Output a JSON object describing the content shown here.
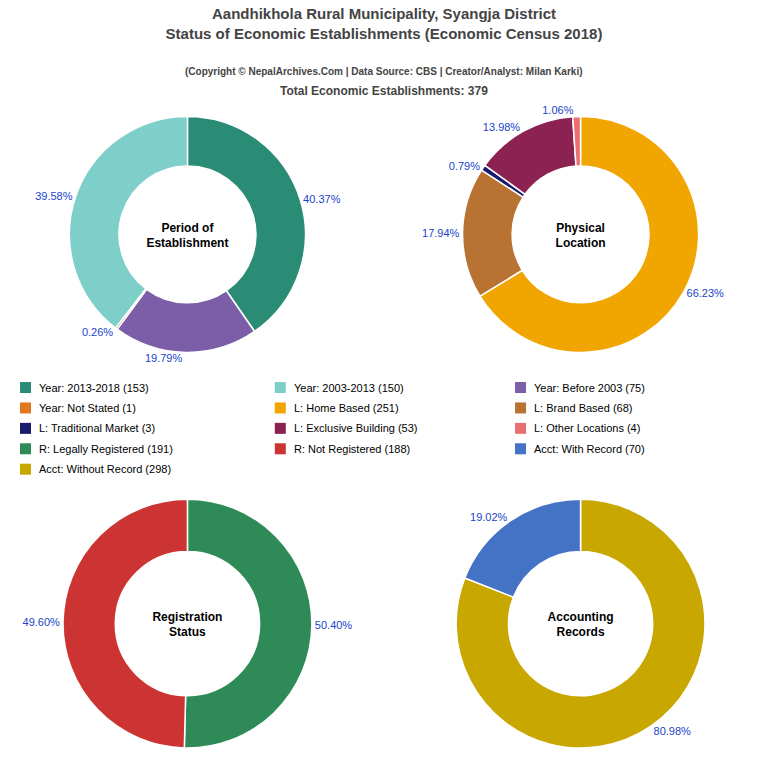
{
  "title": "Aandhikhola Rural Municipality, Syangja District\nStatus of Economic Establishments (Economic Census 2018)",
  "subtitle": [
    "(Copyright © NepalArchives.Com | Data Source: CBS | Creator/Analyst: Milan Karki)",
    "Total Economic Establishments: 379"
  ],
  "chart_data": [
    {
      "type": "pie",
      "title": "Period of\nEstablishment",
      "values": [
        40.37,
        19.79,
        0.26,
        39.58
      ],
      "value_labels": [
        "40.37%",
        "19.79%",
        "0.26%",
        "39.58%"
      ],
      "colors": [
        "#2A8C74",
        "#7B5EA7",
        "#8B0000",
        "#7ECECA"
      ],
      "data_labels": true
    },
    {
      "type": "pie",
      "title": "Physical\nLocation",
      "values": [
        66.23,
        17.94,
        0.79,
        13.98,
        1.06
      ],
      "value_labels": [
        "66.23%",
        "17.94%",
        "0.79%",
        "13.98%",
        "1.06%"
      ],
      "colors": [
        "#F0A500",
        "#B87333",
        "#1A1A6E",
        "#8B2252",
        "#E87070"
      ],
      "data_labels": true
    },
    {
      "type": "pie",
      "title": "Registration\nStatus",
      "values": [
        50.4,
        49.6
      ],
      "value_labels": [
        "50.40%",
        "49.60%"
      ],
      "colors": [
        "#2E8B57",
        "#CC3333"
      ],
      "data_labels": true
    },
    {
      "type": "pie",
      "title": "Accounting\nRecords",
      "values": [
        80.98,
        19.02
      ],
      "value_labels": [
        "80.98%",
        "19.02%"
      ],
      "colors": [
        "#C8A800",
        "#4472C4"
      ],
      "data_labels": true
    }
  ],
  "series": [
    {
      "name": "Year: 2013-2018 (153)",
      "color": "#2A8C74"
    },
    {
      "name": "Year: Not Stated (1)",
      "color": "#E07820"
    },
    {
      "name": "L: Traditional Market (3)",
      "color": "#1A1A6E"
    },
    {
      "name": "R: Legally Registered (191)",
      "color": "#2E8B57"
    },
    {
      "name": "Acct: Without Record (298)",
      "color": "#C8A800"
    },
    {
      "name": "Year: 2003-2013 (150)",
      "color": "#7ECECA"
    },
    {
      "name": "L: Home Based (251)",
      "color": "#F0A500"
    },
    {
      "name": "L: Exclusive Building (53)",
      "color": "#8B2252"
    },
    {
      "name": "R: Not Registered (188)",
      "color": "#CC3333"
    },
    {
      "name": "Year: Before 2003 (75)",
      "color": "#7B5EA7"
    },
    {
      "name": "L: Brand Based (68)",
      "color": "#B87333"
    },
    {
      "name": "L: Other Locations (4)",
      "color": "#E87070"
    },
    {
      "name": "Acct: With Record (70)",
      "color": "#4472C4"
    }
  ]
}
